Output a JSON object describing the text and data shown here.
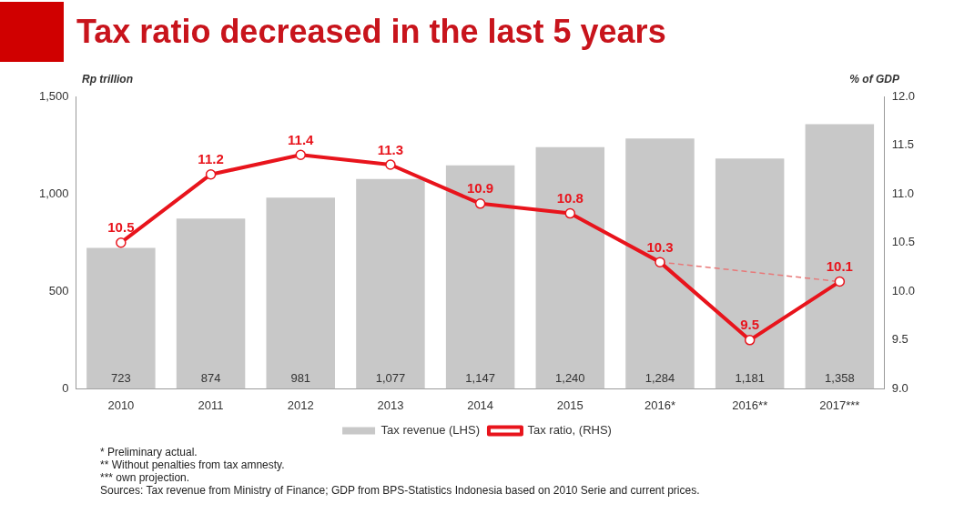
{
  "chart_data": {
    "type": "bar",
    "title": "Tax ratio decreased in the last 5 years",
    "ylabel": "Rp trillion",
    "y2label": "% of GDP",
    "categories": [
      "2010",
      "2011",
      "2012",
      "2013",
      "2014",
      "2015",
      "2016*",
      "2016**",
      "2017***"
    ],
    "series": [
      {
        "name": "Tax revenue (LHS)",
        "color": "#c8c8c8",
        "values": [
          723,
          874,
          981,
          1077,
          1147,
          1240,
          1284,
          1181,
          1358
        ],
        "value_labels": [
          "723",
          "874",
          "981",
          "1,077",
          "1,147",
          "1,240",
          "1,284",
          "1,181",
          "1,358"
        ]
      },
      {
        "name": "Tax ratio, (RHS)",
        "type": "line",
        "axis": "y2",
        "color": "#e8141c",
        "marker": "circle",
        "values": [
          10.5,
          11.2,
          11.4,
          11.3,
          10.9,
          10.8,
          10.3,
          9.5,
          10.1
        ],
        "value_labels": [
          "10.5",
          "11.2",
          "11.4",
          "11.3",
          "10.9",
          "10.8",
          "10.3",
          "9.5",
          "10.1"
        ]
      },
      {
        "type": "line",
        "axis": "y2",
        "color": "#e87878",
        "marker": "none",
        "line_style": "dashed",
        "values": [
          null,
          null,
          null,
          null,
          null,
          null,
          10.3,
          null,
          10.1
        ]
      }
    ],
    "ylim": [
      0,
      1500
    ],
    "yticks": [
      0,
      {
        "value": 500,
        "label": "500"
      },
      {
        "value": 1000,
        "label": "1,000"
      },
      {
        "value": 1500,
        "label": "1,500"
      }
    ],
    "y2lim": [
      9,
      12
    ],
    "y2ticks": [
      {
        "value": 9,
        "label": "9.0"
      },
      {
        "value": 9.5,
        "label": "9.5"
      },
      {
        "value": 10,
        "label": "10.0"
      },
      {
        "value": 10.5,
        "label": "10.5"
      },
      {
        "value": 11,
        "label": "11.0"
      },
      {
        "value": 11.5,
        "label": "11.5"
      },
      {
        "value": 12,
        "label": "12.0"
      }
    ],
    "grid": false,
    "legend": "bottom",
    "annotations": [
      "* Preliminary actual.",
      "** Without penalties from tax amnesty.",
      "*** own projection.",
      "Sources: Tax revenue from Ministry of Finance; GDP from BPS-Statistics Indonesia based on 2010 Serie and current prices."
    ]
  }
}
